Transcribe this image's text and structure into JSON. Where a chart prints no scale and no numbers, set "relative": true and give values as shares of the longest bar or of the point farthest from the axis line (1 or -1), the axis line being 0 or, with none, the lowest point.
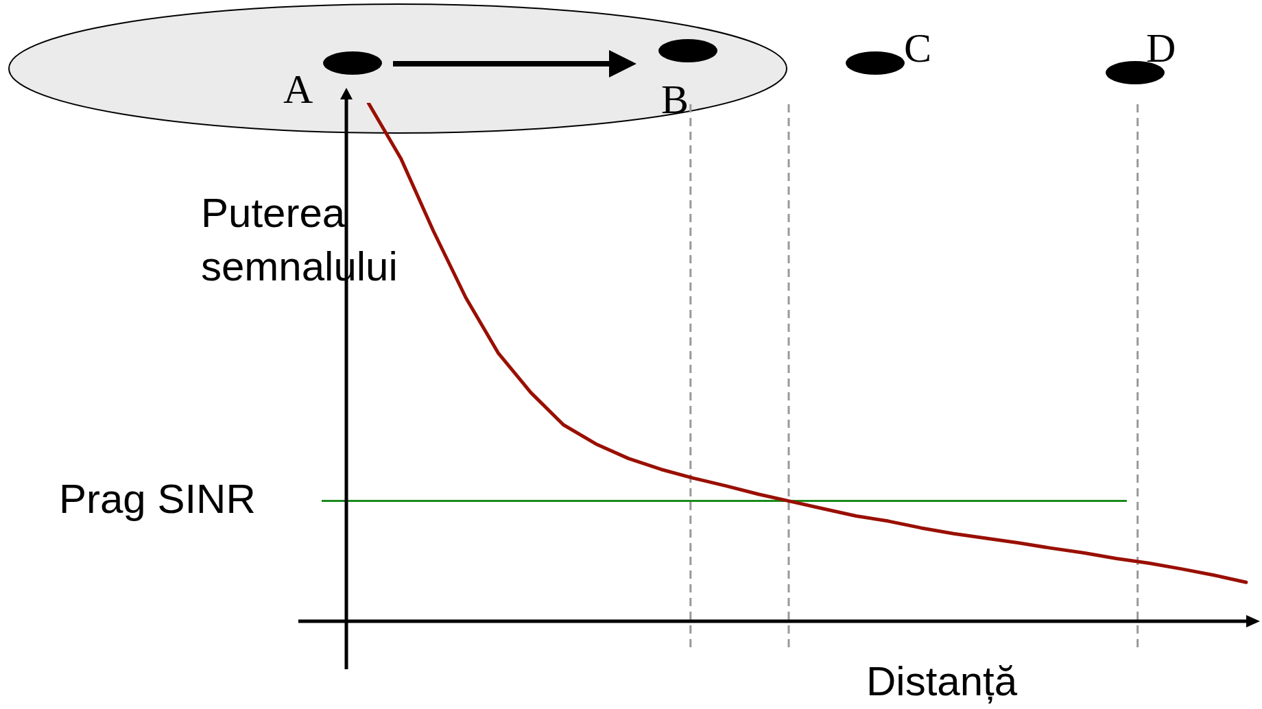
{
  "chart_data": {
    "type": "line",
    "relative": true,
    "xlabel": "Distanță",
    "ylabel": "Puterea semnalului",
    "marker": "none",
    "line_style": "solid",
    "categories": [
      null,
      null,
      null,
      null,
      null,
      null,
      null,
      null,
      null,
      null,
      null,
      null,
      null,
      null,
      null,
      null,
      null,
      null,
      null,
      null,
      null,
      null,
      null,
      null,
      null,
      null,
      null,
      null
    ],
    "series": [
      {
        "color": "#990f00",
        "values": [
          1.0,
          0.893,
          0.753,
          0.624,
          0.517,
          0.441,
          0.379,
          0.342,
          0.314,
          0.293,
          0.276,
          0.261,
          0.245,
          0.231,
          0.217,
          0.203,
          0.193,
          0.18,
          0.169,
          0.16,
          0.151,
          0.141,
          0.132,
          0.121,
          0.112,
          0.101,
          0.089,
          0.075
        ]
      }
    ],
    "ref_lines": [
      {
        "axis": "y",
        "value": 0.232,
        "label": "Prag SINR",
        "color": "#1a8a1a",
        "line_style": "solid"
      }
    ],
    "annotations": [
      "A",
      "B",
      "C",
      "D"
    ]
  }
}
